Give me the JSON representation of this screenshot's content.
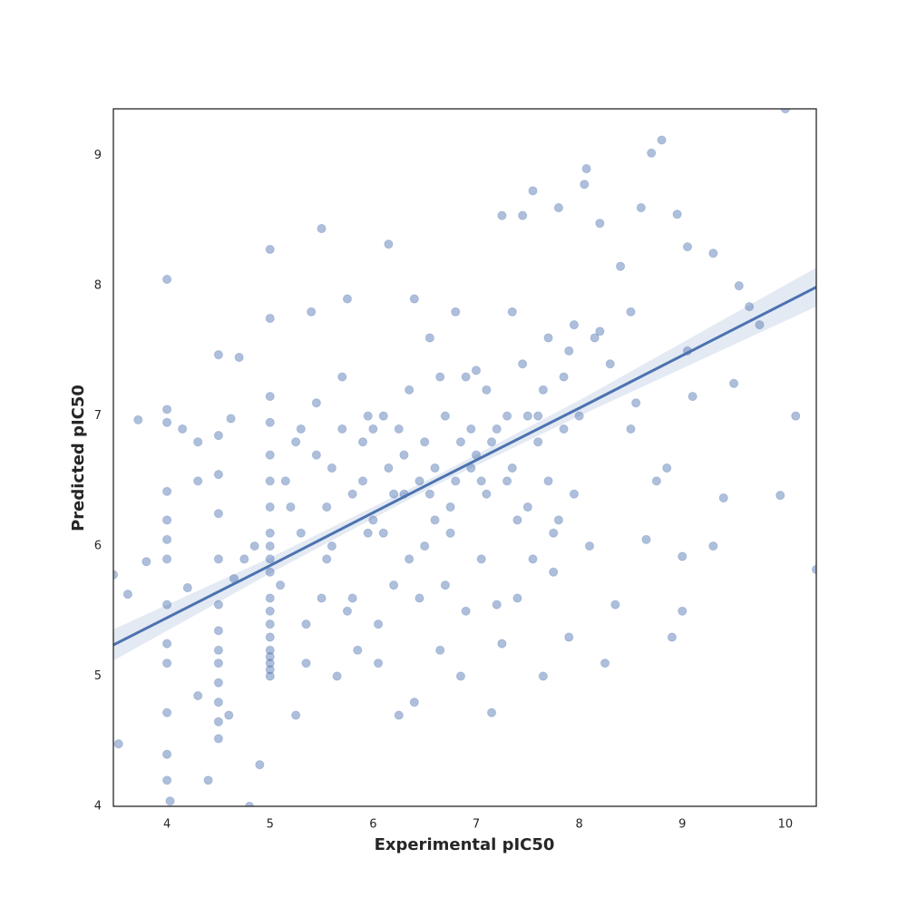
{
  "chart_data": {
    "type": "scatter",
    "xlabel": "Experimental pIC50",
    "ylabel": "Predicted pIC50",
    "xlim": [
      3.48,
      10.3
    ],
    "ylim": [
      4,
      9.36
    ],
    "xticks": [
      4,
      5,
      6,
      7,
      8,
      9,
      10
    ],
    "yticks": [
      4,
      5,
      6,
      7,
      8,
      9
    ],
    "color": "#4c72b0",
    "alpha": 0.45,
    "grid": false,
    "x": [
      4,
      4,
      4,
      4,
      4,
      4,
      4,
      4,
      4,
      4,
      4,
      4,
      4,
      4.5,
      4.5,
      4.5,
      4.5,
      4.5,
      4.5,
      4.5,
      4.5,
      4.5,
      4.5,
      4.5,
      4.5,
      4.5,
      5,
      5,
      5,
      5,
      5,
      5,
      5,
      5,
      5,
      5,
      5,
      5,
      5,
      5,
      5,
      5,
      5,
      5,
      5,
      5,
      3.48,
      3.53,
      3.62,
      3.72,
      3.8,
      4.03,
      4.15,
      4.2,
      4.3,
      4.3,
      4.4,
      4.3,
      4.62,
      4.65,
      4.7,
      4.8,
      4.85,
      4.9,
      4.6,
      4.75,
      5.1,
      5.2,
      5.25,
      5.3,
      5.35,
      5.4,
      5.45,
      5.5,
      5.55,
      5.6,
      5.65,
      5.7,
      5.75,
      5.8,
      5.85,
      5.9,
      5.95,
      5.3,
      5.5,
      5.7,
      5.15,
      5.35,
      5.45,
      5.6,
      5.8,
      5.95,
      5.25,
      5.55,
      5.75,
      5.9,
      6.0,
      6.05,
      6.1,
      6.15,
      6.2,
      6.25,
      6.3,
      6.35,
      6.4,
      6.45,
      6.5,
      6.55,
      6.6,
      6.65,
      6.7,
      6.75,
      6.8,
      6.85,
      6.9,
      6.95,
      6.0,
      6.1,
      6.2,
      6.3,
      6.4,
      6.5,
      6.6,
      6.7,
      6.8,
      6.9,
      6.05,
      6.25,
      6.45,
      6.55,
      6.65,
      6.75,
      6.85,
      6.95,
      6.35,
      6.15,
      7.0,
      7.05,
      7.1,
      7.15,
      7.2,
      7.25,
      7.3,
      7.35,
      7.4,
      7.45,
      7.5,
      7.55,
      7.6,
      7.65,
      7.7,
      7.75,
      7.8,
      7.85,
      7.9,
      7.95,
      7.0,
      7.1,
      7.2,
      7.3,
      7.4,
      7.5,
      7.6,
      7.7,
      7.8,
      7.9,
      7.05,
      7.15,
      7.25,
      7.35,
      7.45,
      7.55,
      7.65,
      7.75,
      7.85,
      7.95,
      8.0,
      8.05,
      8.07,
      8.1,
      8.15,
      8.2,
      8.3,
      8.35,
      8.4,
      8.5,
      8.55,
      8.6,
      8.7,
      8.75,
      8.8,
      8.85,
      8.9,
      8.95,
      9.0,
      9.0,
      9.05,
      9.1,
      9.3,
      9.4,
      9.55,
      9.65,
      9.75,
      9.95,
      10.0,
      10.1,
      10.3,
      9.3,
      9.05,
      8.2,
      8.5,
      8.65,
      8.25,
      9.5
    ],
    "values": [
      4.2,
      4.4,
      4.72,
      5.1,
      5.25,
      5.55,
      5.9,
      6.05,
      6.2,
      6.42,
      6.95,
      7.05,
      8.05,
      4.52,
      4.65,
      4.8,
      4.95,
      5.1,
      5.2,
      5.35,
      5.55,
      5.9,
      6.25,
      6.55,
      6.85,
      7.47,
      5.0,
      5.05,
      5.1,
      5.15,
      5.2,
      5.3,
      5.4,
      5.5,
      5.6,
      5.8,
      5.9,
      6.0,
      6.1,
      6.3,
      6.5,
      6.7,
      6.95,
      7.15,
      7.75,
      8.28,
      5.78,
      4.48,
      5.63,
      6.97,
      5.88,
      4.04,
      6.9,
      5.68,
      4.85,
      6.8,
      4.2,
      6.5,
      6.98,
      5.75,
      7.45,
      4.0,
      6.0,
      4.32,
      4.7,
      5.9,
      5.7,
      6.3,
      4.7,
      6.1,
      5.4,
      7.8,
      6.7,
      8.44,
      5.9,
      6.6,
      5.0,
      6.9,
      7.9,
      6.4,
      5.2,
      6.8,
      6.1,
      6.9,
      5.6,
      7.3,
      6.5,
      5.1,
      7.1,
      6.0,
      5.6,
      7.0,
      6.8,
      6.3,
      5.5,
      6.5,
      6.2,
      5.4,
      7.0,
      8.32,
      6.4,
      4.7,
      6.7,
      5.9,
      7.9,
      6.5,
      6.0,
      7.6,
      6.6,
      5.2,
      7.0,
      6.3,
      7.8,
      6.8,
      5.5,
      6.9,
      6.9,
      6.1,
      5.7,
      6.4,
      4.8,
      6.8,
      6.2,
      5.7,
      6.5,
      7.3,
      5.1,
      6.9,
      5.6,
      6.4,
      7.3,
      6.1,
      5.0,
      6.6,
      7.2,
      6.6,
      6.7,
      5.9,
      7.2,
      4.72,
      6.9,
      8.54,
      6.5,
      7.8,
      5.6,
      8.54,
      6.3,
      8.73,
      6.8,
      5.0,
      7.6,
      6.1,
      8.6,
      7.3,
      5.3,
      7.7,
      7.35,
      6.4,
      5.55,
      7.0,
      6.2,
      7.0,
      7.0,
      6.5,
      6.2,
      7.5,
      6.5,
      6.8,
      5.25,
      6.6,
      7.4,
      5.9,
      7.2,
      5.8,
      6.9,
      6.4,
      7.0,
      8.78,
      8.9,
      6.0,
      7.6,
      8.48,
      7.4,
      5.55,
      8.15,
      6.9,
      7.1,
      8.6,
      9.02,
      6.5,
      9.12,
      6.6,
      5.3,
      8.55,
      5.5,
      5.92,
      8.3,
      7.15,
      8.25,
      6.37,
      8.0,
      7.84,
      7.7,
      6.39,
      9.36,
      7.0,
      5.82,
      6.0,
      7.5,
      7.65,
      7.8,
      6.05,
      5.1,
      7.25
    ],
    "fit": {
      "color": "#4c72b0",
      "x": [
        3.48,
        5,
        6.6,
        8,
        10.3
      ],
      "values": [
        5.24,
        5.85,
        6.5,
        7.06,
        7.99
      ],
      "band_lower": [
        5.12,
        5.79,
        6.465,
        7.0,
        7.84
      ],
      "band_upper": [
        5.36,
        5.91,
        6.535,
        7.12,
        8.14
      ]
    }
  }
}
